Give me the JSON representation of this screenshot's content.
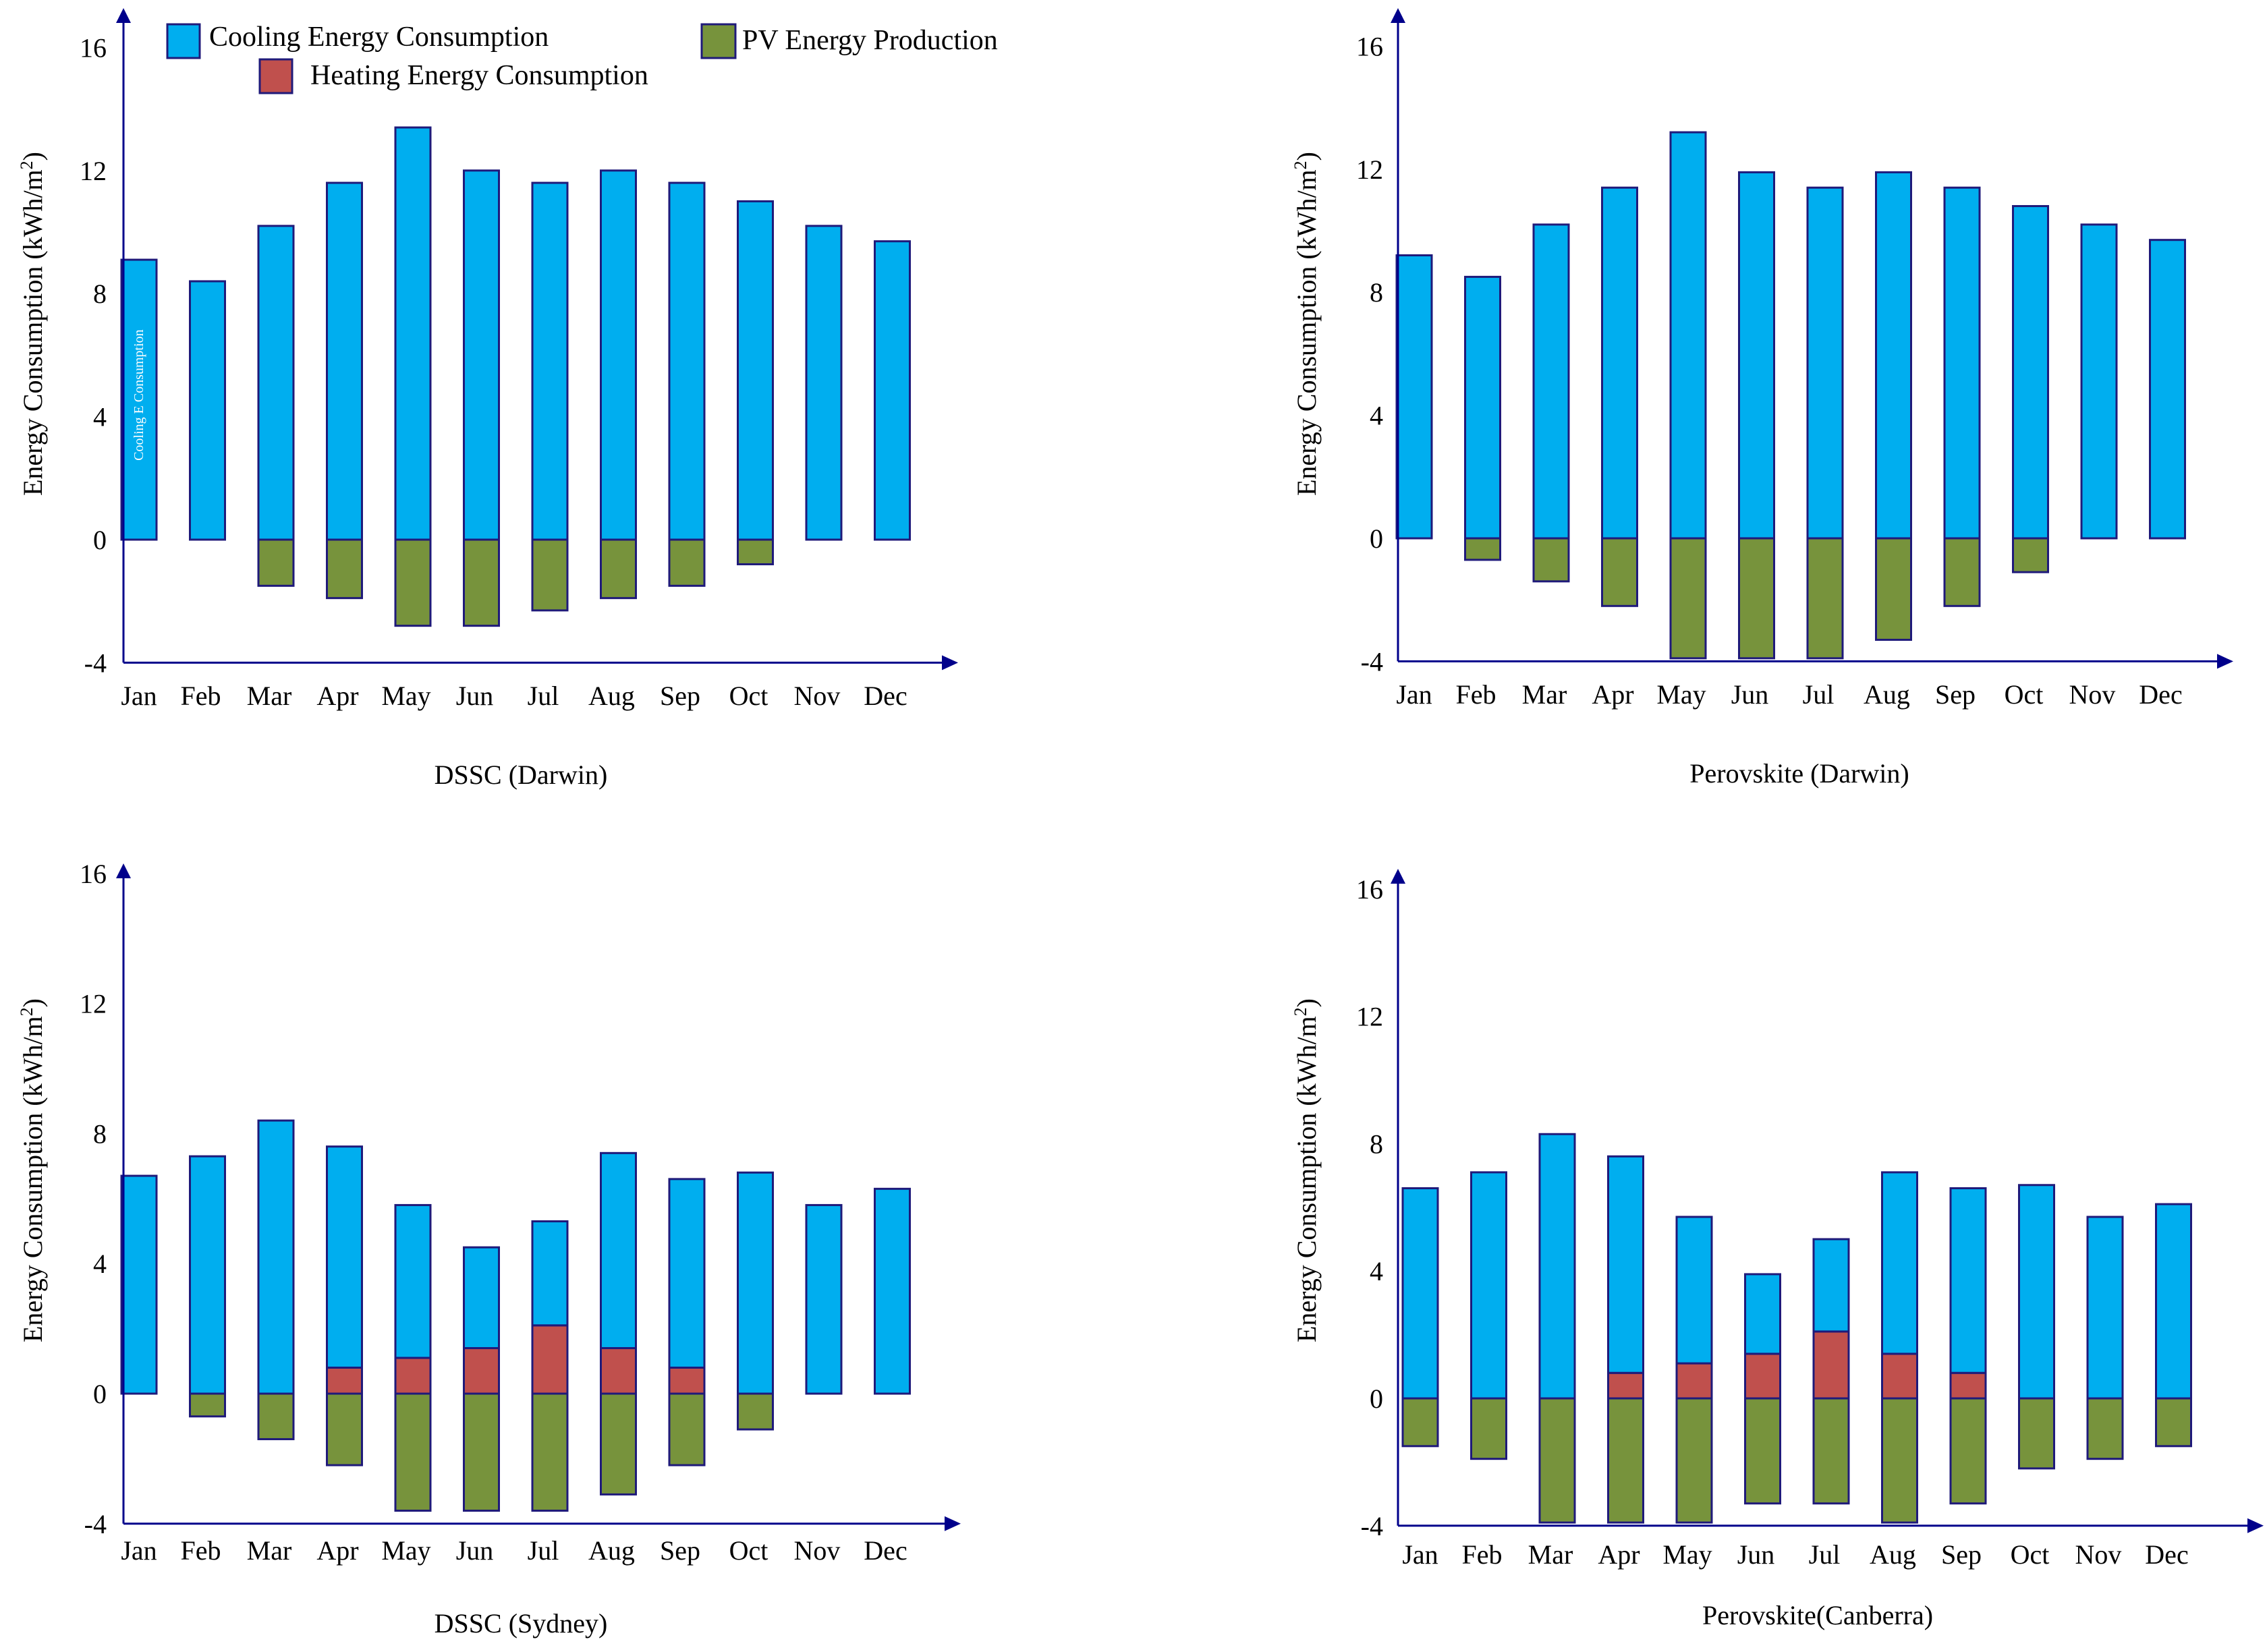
{
  "legend": {
    "cooling": "Cooling Energy Consumption",
    "heating": "Heating Energy Consumption",
    "pv": "PV Energy Production"
  },
  "colors": {
    "cooling": "#00AEEF",
    "heating": "#C0504D",
    "pv": "#77933C",
    "outline": "#1F1A7A",
    "axis": "#00008B"
  },
  "chart_data": [
    {
      "type": "bar",
      "title": "DSSC (Darwin)",
      "xlabel": "",
      "ylabel": "Energy Consumption  (kWh/m2)",
      "ylim": [
        -4,
        16
      ],
      "yticks": [
        -4,
        0,
        4,
        8,
        12,
        16
      ],
      "categories": [
        "Jan",
        "Feb",
        "Mar",
        "Apr",
        "May",
        "Jun",
        "Jul",
        "Aug",
        "Sep",
        "Oct",
        "Nov",
        "Dec"
      ],
      "series": [
        {
          "name": "Cooling Energy Consumption",
          "values": [
            9.1,
            8.4,
            10.2,
            11.6,
            13.4,
            12.0,
            11.6,
            12.0,
            11.6,
            11.0,
            10.2,
            9.7
          ]
        },
        {
          "name": "Heating Energy Consumption",
          "values": [
            0,
            0,
            0,
            0,
            0,
            0,
            0,
            0,
            0,
            0,
            0,
            0
          ]
        },
        {
          "name": "PV Energy Production",
          "values": [
            0,
            0,
            -1.5,
            -1.9,
            -2.8,
            -2.8,
            -2.3,
            -1.9,
            -1.5,
            -0.8,
            0,
            0
          ]
        }
      ],
      "annotation": "Cooling E Consumption"
    },
    {
      "type": "bar",
      "title": "Perovskite (Darwin)",
      "xlabel": "",
      "ylabel": "Energy Consumption  (kWh/m2)",
      "ylim": [
        -4,
        16
      ],
      "yticks": [
        -4,
        0,
        4,
        8,
        12,
        16
      ],
      "categories": [
        "Jan",
        "Feb",
        "Mar",
        "Apr",
        "May",
        "Jun",
        "Jul",
        "Aug",
        "Sep",
        "Oct",
        "Nov",
        "Dec"
      ],
      "series": [
        {
          "name": "Cooling Energy Consumption",
          "values": [
            9.2,
            8.5,
            10.2,
            11.4,
            13.2,
            11.9,
            11.4,
            11.9,
            11.4,
            10.8,
            10.2,
            9.7
          ]
        },
        {
          "name": "Heating Energy Consumption",
          "values": [
            0,
            0,
            0,
            0,
            0,
            0,
            0,
            0,
            0,
            0,
            0,
            0
          ]
        },
        {
          "name": "PV Energy Production",
          "values": [
            0,
            -0.7,
            -1.4,
            -2.2,
            -3.9,
            -3.9,
            -3.9,
            -3.3,
            -2.2,
            -1.1,
            0,
            0
          ]
        }
      ]
    },
    {
      "type": "bar",
      "title": "DSSC (Sydney)",
      "xlabel": "",
      "ylabel": "Energy Consumption  (kWh/m2)",
      "ylim": [
        -4,
        16
      ],
      "yticks": [
        -4,
        0,
        4,
        8,
        12,
        16
      ],
      "categories": [
        "Jan",
        "Feb",
        "Mar",
        "Apr",
        "May",
        "Jun",
        "Jul",
        "Aug",
        "Sep",
        "Oct",
        "Nov",
        "Dec"
      ],
      "series": [
        {
          "name": "Cooling Energy Consumption",
          "values": [
            6.7,
            7.3,
            8.4,
            6.8,
            4.7,
            3.1,
            3.2,
            6.0,
            5.8,
            6.8,
            5.8,
            6.3
          ]
        },
        {
          "name": "Heating Energy Consumption",
          "values": [
            0,
            0,
            0,
            0.8,
            1.1,
            1.4,
            2.1,
            1.4,
            0.8,
            0,
            0,
            0
          ]
        },
        {
          "name": "PV Energy Production",
          "values": [
            0,
            -0.7,
            -1.4,
            -2.2,
            -3.6,
            -3.6,
            -3.6,
            -3.1,
            -2.2,
            -1.1,
            0,
            0
          ]
        }
      ]
    },
    {
      "type": "bar",
      "title": "Perovskite(Canberra)",
      "xlabel": "",
      "ylabel": "Energy Consumption  (kWh/m2)",
      "ylim": [
        -4,
        16
      ],
      "yticks": [
        -4,
        0,
        4,
        8,
        12,
        16
      ],
      "categories": [
        "Jan",
        "Feb",
        "Mar",
        "Apr",
        "May",
        "Jun",
        "Jul",
        "Aug",
        "Sep",
        "Oct",
        "Nov",
        "Dec"
      ],
      "series": [
        {
          "name": "Cooling Energy Consumption",
          "values": [
            6.6,
            7.1,
            8.3,
            6.8,
            4.6,
            2.5,
            2.9,
            5.7,
            5.8,
            6.7,
            5.7,
            6.1
          ]
        },
        {
          "name": "Heating Energy Consumption",
          "values": [
            0,
            0,
            0,
            0.8,
            1.1,
            1.4,
            2.1,
            1.4,
            0.8,
            0,
            0,
            0
          ]
        },
        {
          "name": "PV Energy Production",
          "values": [
            -1.5,
            -1.9,
            -3.9,
            -3.9,
            -3.9,
            -3.3,
            -3.3,
            -3.9,
            -3.3,
            -2.2,
            -1.9,
            -1.5
          ]
        }
      ]
    }
  ]
}
